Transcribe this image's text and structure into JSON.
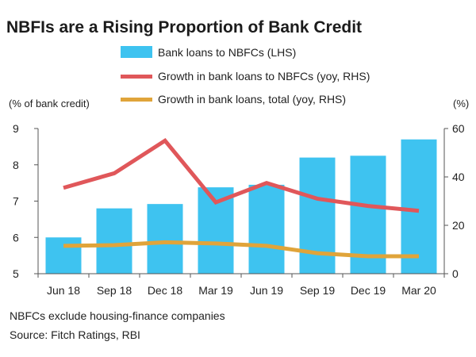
{
  "chart_data": {
    "type": "bar",
    "title": "NBFIs are a Rising Proportion of Bank Credit",
    "categories": [
      "Jun 18",
      "Sep 18",
      "Dec 18",
      "Mar 19",
      "Jun 19",
      "Sep 19",
      "Dec 19",
      "Mar 20"
    ],
    "left_axis": {
      "label": "(% of bank credit)",
      "min": 5,
      "max": 9,
      "ticks": [
        5,
        6,
        7,
        8,
        9
      ]
    },
    "right_axis": {
      "label": "(%)",
      "min": 0,
      "max": 60,
      "ticks": [
        0,
        20,
        40,
        60
      ]
    },
    "series": [
      {
        "name": "Bank loans to NBFCs (LHS)",
        "type": "bar",
        "axis": "left",
        "color": "#3ec3f0",
        "values": [
          6.0,
          6.8,
          6.92,
          7.38,
          7.45,
          8.2,
          8.25,
          8.7
        ]
      },
      {
        "name": "Growth in bank loans to NBFCs (yoy, RHS)",
        "type": "line",
        "axis": "right",
        "color": "#e0575a",
        "values": [
          35.5,
          41.5,
          55,
          29.5,
          37.5,
          31,
          28,
          26
        ]
      },
      {
        "name": "Growth in bank loans, total (yoy, RHS)",
        "type": "line",
        "axis": "right",
        "color": "#e0a43a",
        "values": [
          11.5,
          11.8,
          13,
          12.5,
          11.5,
          8.5,
          7.2,
          7.2
        ]
      }
    ],
    "grid": false,
    "legend_position": "top",
    "notes": [
      "NBFCs exclude housing-finance companies",
      "Source: Fitch Ratings, RBI"
    ]
  }
}
